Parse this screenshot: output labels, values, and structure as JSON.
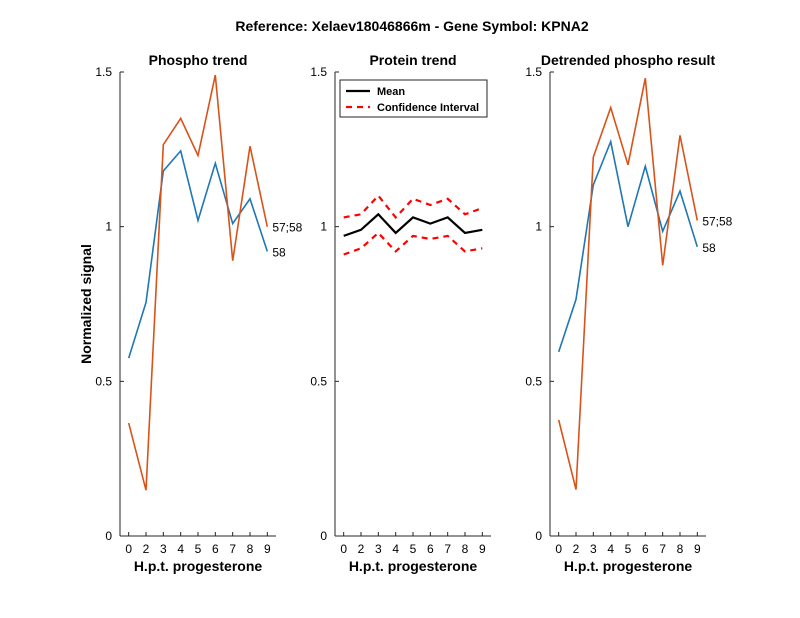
{
  "figure": {
    "title": "Reference:  Xelaev18046866m - Gene Symbol:  KPNA2",
    "y_label": "Normalized signal"
  },
  "chart_data": [
    {
      "type": "line",
      "title": "Phospho trend",
      "xlabel": "H.p.t. progesterone",
      "ylabel": "Normalized signal",
      "x": [
        0,
        1,
        2,
        3,
        4,
        5,
        6,
        7,
        8
      ],
      "x_tick_labels": [
        "0",
        "2",
        "3",
        "4",
        "5",
        "6",
        "7",
        "8",
        "9"
      ],
      "ylim": [
        0,
        1.5
      ],
      "y_ticks": [
        0,
        0.5,
        1,
        1.5
      ],
      "y_tick_labels": [
        "0",
        "0.5",
        "1",
        "1.5"
      ],
      "xlim": [
        -0.5,
        8.5
      ],
      "series": [
        {
          "name": "58",
          "color": "#1f77b4",
          "values": [
            0.575,
            0.755,
            1.18,
            1.245,
            1.02,
            1.205,
            1.01,
            1.09,
            0.92
          ]
        },
        {
          "name": "57;58",
          "color": "#d95319",
          "values": [
            0.365,
            0.148,
            1.265,
            1.35,
            1.23,
            1.49,
            0.89,
            1.26,
            1.0
          ]
        }
      ]
    },
    {
      "type": "line",
      "title": "Protein trend",
      "xlabel": "H.p.t. progesterone",
      "x": [
        0,
        1,
        2,
        3,
        4,
        5,
        6,
        7,
        8
      ],
      "x_tick_labels": [
        "0",
        "2",
        "3",
        "4",
        "5",
        "6",
        "7",
        "8",
        "9"
      ],
      "ylim": [
        0,
        1.5
      ],
      "y_ticks": [
        0,
        0.5,
        1,
        1.5
      ],
      "y_tick_labels": [
        "0",
        "0.5",
        "1",
        "1.5"
      ],
      "xlim": [
        -0.5,
        8.5
      ],
      "legend": {
        "position": "top-left",
        "entries": [
          "Mean",
          "Confidence Interval"
        ]
      },
      "series": [
        {
          "name": "Mean",
          "color": "#000000",
          "style": "solid",
          "values": [
            0.97,
            0.99,
            1.04,
            0.98,
            1.03,
            1.01,
            1.03,
            0.98,
            0.99
          ]
        },
        {
          "name": "Confidence Interval",
          "color": "#ff0000",
          "style": "dashed",
          "values": [
            1.03,
            1.04,
            1.1,
            1.03,
            1.09,
            1.07,
            1.09,
            1.04,
            1.06
          ]
        },
        {
          "name": "Confidence Interval",
          "color": "#ff0000",
          "style": "dashed",
          "values": [
            0.91,
            0.93,
            0.98,
            0.92,
            0.97,
            0.96,
            0.97,
            0.92,
            0.93
          ]
        }
      ]
    },
    {
      "type": "line",
      "title": "Detrended phospho result",
      "xlabel": "H.p.t. progesterone",
      "x": [
        0,
        1,
        2,
        3,
        4,
        5,
        6,
        7,
        8
      ],
      "x_tick_labels": [
        "0",
        "2",
        "3",
        "4",
        "5",
        "6",
        "7",
        "8",
        "9"
      ],
      "ylim": [
        0,
        1.5
      ],
      "y_ticks": [
        0,
        0.5,
        1,
        1.5
      ],
      "y_tick_labels": [
        "0",
        "0.5",
        "1",
        "1.5"
      ],
      "xlim": [
        -0.5,
        8.5
      ],
      "series": [
        {
          "name": "58",
          "color": "#1f77b4",
          "values": [
            0.595,
            0.765,
            1.135,
            1.275,
            1.0,
            1.195,
            0.985,
            1.115,
            0.935
          ]
        },
        {
          "name": "57;58",
          "color": "#d95319",
          "values": [
            0.375,
            0.15,
            1.225,
            1.385,
            1.2,
            1.48,
            0.875,
            1.295,
            1.02
          ]
        }
      ]
    }
  ]
}
